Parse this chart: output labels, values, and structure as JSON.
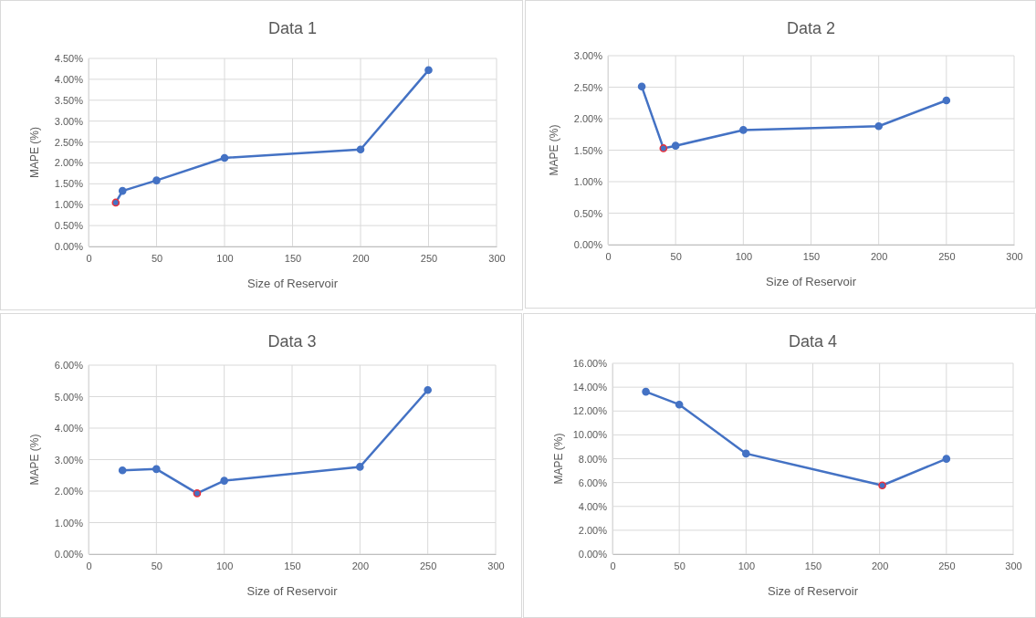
{
  "chart_data": [
    {
      "type": "line",
      "title": "Data 1",
      "xlabel": "Size of Reservoir",
      "ylabel": "MAPE (%)",
      "xlim": [
        0,
        300
      ],
      "xticks": [
        0,
        50,
        100,
        150,
        200,
        250,
        300
      ],
      "ylim": [
        0,
        4.5
      ],
      "yticks": [
        {
          "value": 0,
          "label": "0.00%"
        },
        {
          "value": 0.5,
          "label": "0.50%"
        },
        {
          "value": 1,
          "label": "1.00%"
        },
        {
          "value": 1.5,
          "label": "1.50%"
        },
        {
          "value": 2,
          "label": "2.00%"
        },
        {
          "value": 2.5,
          "label": "2.50%"
        },
        {
          "value": 3,
          "label": "3.00%"
        },
        {
          "value": 3.5,
          "label": "3.50%"
        },
        {
          "value": 4,
          "label": "4.00%"
        },
        {
          "value": 4.5,
          "label": "4.50%"
        }
      ],
      "grid": true,
      "marker": "circle",
      "line_style": "solid",
      "series": [
        {
          "color": "#4472c4",
          "x": [
            20,
            25,
            50,
            100,
            200,
            250
          ],
          "values": [
            1.05,
            1.33,
            1.58,
            2.12,
            2.32,
            4.22
          ],
          "colors": [
            "#e8303a",
            "#4472c4",
            "#4472c4",
            "#4472c4",
            "#4472c4",
            "#4472c4"
          ]
        }
      ]
    },
    {
      "type": "line",
      "title": "Data 2",
      "xlabel": "Size of Reservoir",
      "ylabel": "MAPE (%)",
      "xlim": [
        0,
        300
      ],
      "xticks": [
        0,
        50,
        100,
        150,
        200,
        250,
        300
      ],
      "ylim": [
        0,
        3
      ],
      "yticks": [
        {
          "value": 0,
          "label": "0.00%"
        },
        {
          "value": 0.5,
          "label": "0.50%"
        },
        {
          "value": 1,
          "label": "1.00%"
        },
        {
          "value": 1.5,
          "label": "1.50%"
        },
        {
          "value": 2,
          "label": "2.00%"
        },
        {
          "value": 2.5,
          "label": "2.50%"
        },
        {
          "value": 3,
          "label": "3.00%"
        }
      ],
      "grid": true,
      "marker": "circle",
      "line_style": "solid",
      "series": [
        {
          "color": "#4472c4",
          "x": [
            25,
            41,
            50,
            100,
            200,
            250
          ],
          "values": [
            2.51,
            1.53,
            1.57,
            1.82,
            1.88,
            2.29
          ],
          "colors": [
            "#4472c4",
            "#e8303a",
            "#4472c4",
            "#4472c4",
            "#4472c4",
            "#4472c4"
          ]
        }
      ]
    },
    {
      "type": "line",
      "title": "Data 3",
      "xlabel": "Size of Reservoir",
      "ylabel": "MAPE (%)",
      "xlim": [
        0,
        300
      ],
      "xticks": [
        0,
        50,
        100,
        150,
        200,
        250,
        300
      ],
      "ylim": [
        0,
        6
      ],
      "yticks": [
        {
          "value": 0,
          "label": "0.00%"
        },
        {
          "value": 1,
          "label": "1.00%"
        },
        {
          "value": 2,
          "label": "2.00%"
        },
        {
          "value": 3,
          "label": "3.00%"
        },
        {
          "value": 4,
          "label": "4.00%"
        },
        {
          "value": 5,
          "label": "5.00%"
        },
        {
          "value": 6,
          "label": "6.00%"
        }
      ],
      "grid": true,
      "marker": "circle",
      "line_style": "solid",
      "series": [
        {
          "color": "#4472c4",
          "x": [
            25,
            50,
            80,
            100,
            200,
            250
          ],
          "values": [
            2.66,
            2.7,
            1.93,
            2.33,
            2.77,
            5.21
          ],
          "colors": [
            "#4472c4",
            "#4472c4",
            "#e8303a",
            "#4472c4",
            "#4472c4",
            "#4472c4"
          ]
        }
      ]
    },
    {
      "type": "line",
      "title": "Data 4",
      "xlabel": "Size of Reservoir",
      "ylabel": "MAPE (%)",
      "xlim": [
        0,
        300
      ],
      "xticks": [
        0,
        50,
        100,
        150,
        200,
        250,
        300
      ],
      "ylim": [
        0,
        16
      ],
      "yticks": [
        {
          "value": 0,
          "label": "0.00%"
        },
        {
          "value": 2,
          "label": "2.00%"
        },
        {
          "value": 4,
          "label": "4.00%"
        },
        {
          "value": 6,
          "label": "6.00%"
        },
        {
          "value": 8,
          "label": "8.00%"
        },
        {
          "value": 10,
          "label": "10.00%"
        },
        {
          "value": 12,
          "label": "12.00%"
        },
        {
          "value": 14,
          "label": "14.00%"
        },
        {
          "value": 16,
          "label": "16.00%"
        }
      ],
      "grid": true,
      "marker": "circle",
      "line_style": "solid",
      "series": [
        {
          "color": "#4472c4",
          "x": [
            25,
            50,
            100,
            202,
            250
          ],
          "values": [
            13.62,
            12.54,
            8.43,
            5.76,
            7.99
          ],
          "colors": [
            "#4472c4",
            "#4472c4",
            "#4472c4",
            "#e8303a",
            "#4472c4"
          ]
        }
      ]
    }
  ]
}
